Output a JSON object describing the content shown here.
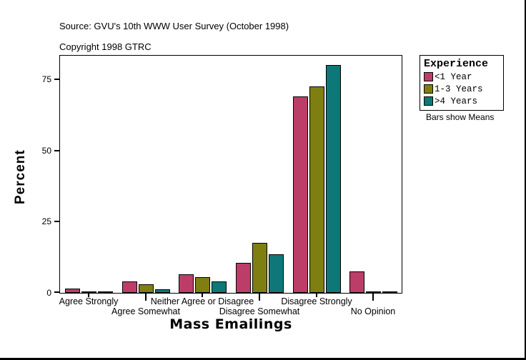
{
  "header": {
    "source_line": "Source: GVU's 10th WWW User Survey (October 1998)",
    "copyright_line": "Copyright 1998 GTRC"
  },
  "legend": {
    "title": "Experience",
    "note": "Bars show Means",
    "items": [
      {
        "label": "<1 Year",
        "color": "#bc3e68"
      },
      {
        "label": "1-3 Years",
        "color": "#7f7e11"
      },
      {
        "label": ">4 Years",
        "color": "#0e7878"
      }
    ]
  },
  "chart_data": {
    "type": "bar",
    "title": "",
    "xlabel": "Mass Emailings",
    "ylabel": "Percent",
    "ylim": [
      0,
      83.5
    ],
    "yticks": [
      0,
      25,
      50,
      75
    ],
    "grid": false,
    "legend_position": "right",
    "legend_title": "Experience",
    "annotation": "Bars show Means",
    "categories": [
      "Agree Strongly",
      "Agree Somewhat",
      "Neither Agree or Disagree",
      "Disagree Somewhat",
      "Disagree Strongly",
      "No Opinion"
    ],
    "series": [
      {
        "name": "<1 Year",
        "color": "#bc3e68",
        "values": [
          1.5,
          4.0,
          6.5,
          10.5,
          69.0,
          7.5
        ]
      },
      {
        "name": "1-3 Years",
        "color": "#7f7e11",
        "values": [
          0.4,
          3.0,
          5.5,
          17.5,
          72.5,
          0.6
        ]
      },
      {
        "name": ">4 Years",
        "color": "#0e7878",
        "values": [
          0.4,
          1.2,
          4.0,
          13.5,
          80.0,
          0.3
        ]
      }
    ]
  }
}
